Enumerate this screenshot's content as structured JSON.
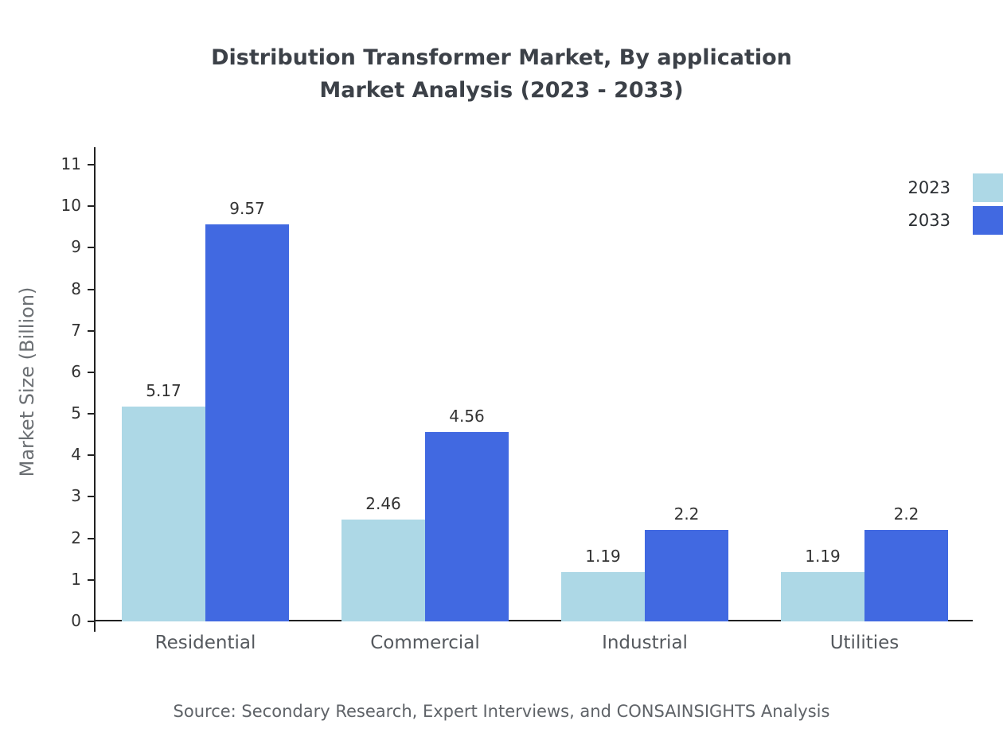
{
  "title": {
    "line1": "Distribution Transformer Market, By application",
    "line2": "Market Analysis (2023 - 2033)"
  },
  "source": "Source: Secondary Research, Expert Interviews, and CONSAINSIGHTS Analysis",
  "chart_data": {
    "type": "bar",
    "categories": [
      "Residential",
      "Commercial",
      "Industrial",
      "Utilities"
    ],
    "series": [
      {
        "name": "2023",
        "color": "#add8e6",
        "values": [
          5.17,
          2.46,
          1.19,
          1.19
        ]
      },
      {
        "name": "2033",
        "color": "#4169e1",
        "values": [
          9.57,
          4.56,
          2.2,
          2.2
        ]
      }
    ],
    "title": "Distribution Transformer Market, By application Market Analysis (2023 - 2033)",
    "xlabel": "",
    "ylabel": "Market Size (Billion)",
    "ylim": [
      0,
      11
    ],
    "yticks": [
      0,
      1,
      2,
      3,
      4,
      5,
      6,
      7,
      8,
      9,
      10,
      11
    ],
    "grid": false,
    "legend_position": "top-right"
  }
}
